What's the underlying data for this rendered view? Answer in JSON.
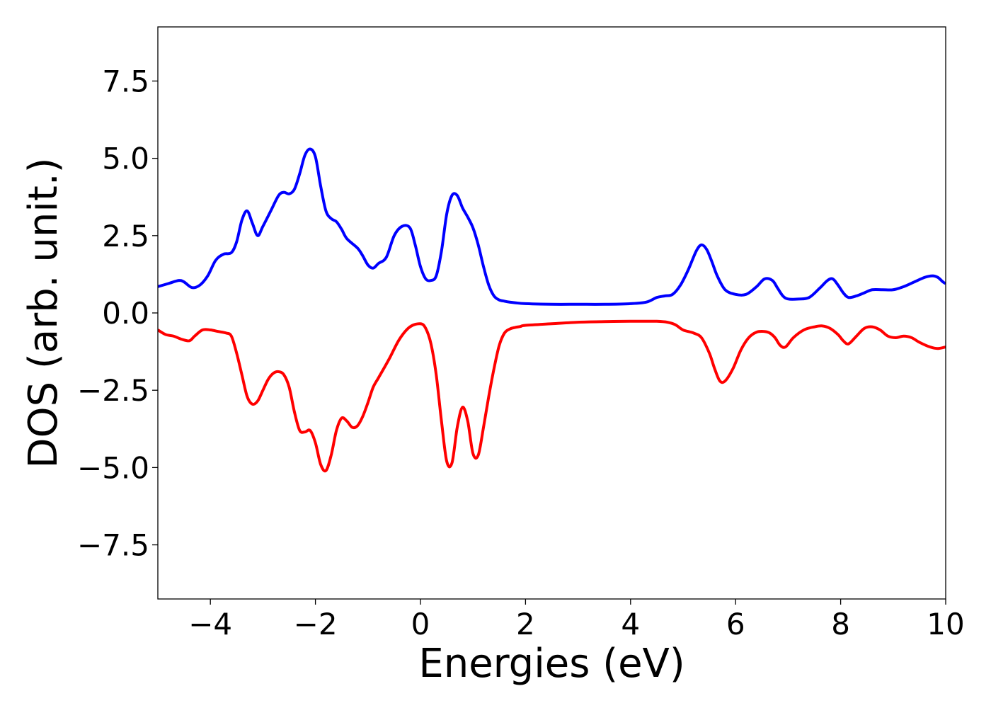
{
  "chart_data": {
    "type": "line",
    "xlabel": "Energies (eV)",
    "ylabel": "DOS (arb. unit.)",
    "xlim": [
      -5,
      10
    ],
    "ylim": [
      -9.25,
      9.25
    ],
    "xticks": [
      -4,
      -2,
      0,
      2,
      4,
      6,
      8,
      10
    ],
    "xtick_labels": [
      "−4",
      "−2",
      "0",
      "2",
      "4",
      "6",
      "8",
      "10"
    ],
    "yticks": [
      -7.5,
      -5.0,
      -2.5,
      0.0,
      2.5,
      5.0,
      7.5
    ],
    "ytick_labels": [
      "−7.5",
      "−5.0",
      "−2.5",
      "0.0",
      "2.5",
      "5.0",
      "7.5"
    ],
    "grid": false,
    "series": [
      {
        "color": "#0000ff",
        "x": [
          -5.0,
          -4.8,
          -4.6,
          -4.5,
          -4.35,
          -4.2,
          -4.05,
          -3.9,
          -3.75,
          -3.6,
          -3.5,
          -3.4,
          -3.3,
          -3.2,
          -3.1,
          -3.0,
          -2.85,
          -2.7,
          -2.6,
          -2.5,
          -2.4,
          -2.3,
          -2.2,
          -2.1,
          -2.0,
          -1.9,
          -1.8,
          -1.7,
          -1.6,
          -1.5,
          -1.4,
          -1.2,
          -1.1,
          -1.0,
          -0.9,
          -0.8,
          -0.65,
          -0.5,
          -0.35,
          -0.2,
          -0.1,
          0.0,
          0.1,
          0.2,
          0.3,
          0.4,
          0.5,
          0.6,
          0.7,
          0.8,
          0.9,
          1.0,
          1.1,
          1.2,
          1.3,
          1.4,
          1.5,
          1.6,
          1.7,
          1.8,
          2.0,
          2.5,
          3.0,
          3.5,
          4.0,
          4.3,
          4.5,
          4.65,
          4.8,
          4.95,
          5.1,
          5.25,
          5.35,
          5.45,
          5.55,
          5.65,
          5.8,
          6.0,
          6.2,
          6.4,
          6.55,
          6.7,
          6.8,
          6.9,
          7.0,
          7.2,
          7.4,
          7.6,
          7.75,
          7.85,
          7.95,
          8.05,
          8.15,
          8.3,
          8.45,
          8.6,
          8.8,
          9.0,
          9.2,
          9.4,
          9.6,
          9.75,
          9.85,
          9.95,
          10.0
        ],
        "y": [
          0.85,
          0.95,
          1.05,
          1.0,
          0.82,
          0.9,
          1.2,
          1.7,
          1.9,
          1.95,
          2.3,
          3.0,
          3.3,
          2.9,
          2.5,
          2.8,
          3.3,
          3.8,
          3.9,
          3.85,
          4.0,
          4.5,
          5.1,
          5.3,
          5.05,
          4.1,
          3.3,
          3.05,
          2.95,
          2.7,
          2.4,
          2.1,
          1.85,
          1.55,
          1.45,
          1.6,
          1.8,
          2.5,
          2.8,
          2.75,
          2.2,
          1.5,
          1.1,
          1.05,
          1.2,
          2.0,
          3.2,
          3.8,
          3.8,
          3.4,
          3.1,
          2.75,
          2.2,
          1.5,
          0.9,
          0.55,
          0.42,
          0.38,
          0.35,
          0.33,
          0.3,
          0.28,
          0.28,
          0.28,
          0.3,
          0.35,
          0.5,
          0.55,
          0.6,
          0.9,
          1.4,
          2.0,
          2.2,
          2.05,
          1.65,
          1.2,
          0.75,
          0.6,
          0.6,
          0.85,
          1.1,
          1.05,
          0.8,
          0.55,
          0.45,
          0.45,
          0.5,
          0.8,
          1.05,
          1.1,
          0.9,
          0.65,
          0.5,
          0.55,
          0.65,
          0.75,
          0.75,
          0.75,
          0.85,
          1.0,
          1.15,
          1.2,
          1.15,
          1.0,
          0.95
        ]
      },
      {
        "color": "#ff0000",
        "x": [
          -5.0,
          -4.85,
          -4.7,
          -4.55,
          -4.4,
          -4.3,
          -4.15,
          -4.0,
          -3.85,
          -3.7,
          -3.6,
          -3.5,
          -3.4,
          -3.3,
          -3.2,
          -3.1,
          -3.0,
          -2.9,
          -2.8,
          -2.7,
          -2.6,
          -2.5,
          -2.4,
          -2.3,
          -2.2,
          -2.1,
          -2.0,
          -1.9,
          -1.8,
          -1.7,
          -1.6,
          -1.5,
          -1.4,
          -1.3,
          -1.2,
          -1.1,
          -1.0,
          -0.9,
          -0.8,
          -0.6,
          -0.4,
          -0.2,
          0.0,
          0.1,
          0.2,
          0.3,
          0.4,
          0.5,
          0.6,
          0.7,
          0.8,
          0.9,
          1.0,
          1.1,
          1.2,
          1.3,
          1.4,
          1.5,
          1.6,
          1.7,
          1.8,
          1.9,
          2.0,
          2.5,
          3.0,
          3.5,
          4.0,
          4.3,
          4.5,
          4.7,
          4.85,
          5.0,
          5.2,
          5.35,
          5.5,
          5.6,
          5.7,
          5.8,
          5.95,
          6.1,
          6.25,
          6.4,
          6.55,
          6.65,
          6.75,
          6.85,
          6.95,
          7.1,
          7.3,
          7.5,
          7.65,
          7.8,
          7.95,
          8.05,
          8.15,
          8.3,
          8.45,
          8.6,
          8.75,
          8.9,
          9.05,
          9.2,
          9.35,
          9.5,
          9.7,
          9.85,
          10.0
        ],
        "y": [
          -0.55,
          -0.7,
          -0.75,
          -0.85,
          -0.9,
          -0.75,
          -0.55,
          -0.55,
          -0.6,
          -0.65,
          -0.75,
          -1.3,
          -2.0,
          -2.7,
          -2.95,
          -2.85,
          -2.5,
          -2.15,
          -1.95,
          -1.9,
          -2.0,
          -2.4,
          -3.2,
          -3.8,
          -3.85,
          -3.8,
          -4.2,
          -4.9,
          -5.1,
          -4.6,
          -3.8,
          -3.4,
          -3.5,
          -3.7,
          -3.65,
          -3.35,
          -2.9,
          -2.4,
          -2.1,
          -1.5,
          -0.85,
          -0.45,
          -0.35,
          -0.5,
          -1.0,
          -2.0,
          -3.5,
          -4.8,
          -4.85,
          -3.7,
          -3.05,
          -3.5,
          -4.55,
          -4.6,
          -3.7,
          -2.7,
          -1.8,
          -1.05,
          -0.65,
          -0.52,
          -0.47,
          -0.44,
          -0.4,
          -0.35,
          -0.3,
          -0.28,
          -0.27,
          -0.27,
          -0.27,
          -0.3,
          -0.38,
          -0.55,
          -0.65,
          -0.8,
          -1.3,
          -1.8,
          -2.2,
          -2.2,
          -1.8,
          -1.2,
          -0.8,
          -0.62,
          -0.6,
          -0.65,
          -0.8,
          -1.05,
          -1.1,
          -0.8,
          -0.55,
          -0.45,
          -0.42,
          -0.5,
          -0.7,
          -0.9,
          -1.0,
          -0.75,
          -0.5,
          -0.45,
          -0.55,
          -0.75,
          -0.8,
          -0.75,
          -0.8,
          -0.95,
          -1.1,
          -1.15,
          -1.1
        ]
      }
    ]
  }
}
